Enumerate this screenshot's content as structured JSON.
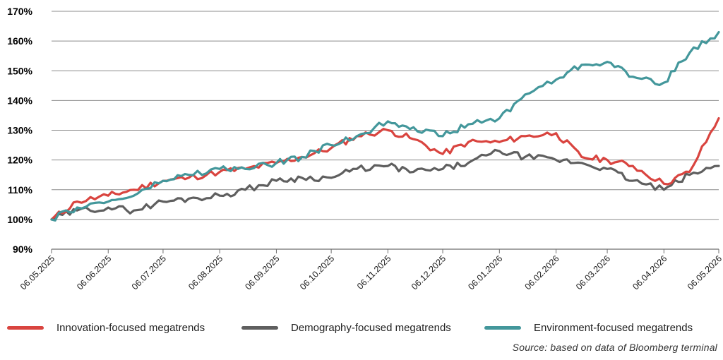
{
  "chart_data": {
    "type": "line",
    "title": "",
    "xlabel": "",
    "ylabel": "",
    "y_tick_labels": [
      "170%",
      "160%",
      "150%",
      "140%",
      "130%",
      "120%",
      "110%",
      "100%",
      "90%"
    ],
    "ylim": [
      90,
      170
    ],
    "y_unit": "%",
    "grid": "horizontal",
    "x_tick_labels": [
      "06.05.2025",
      "06.06.2025",
      "06.07.2025",
      "06.08.2025",
      "06.09.2025",
      "06.10.2025",
      "06.11.2025",
      "06.12.2025",
      "06.01.2026",
      "06.02.2026",
      "06.03.2026",
      "06.04.2026",
      "06.05.2026"
    ],
    "x_dates": [
      "2025-05-06",
      "2025-05-20",
      "2025-06-06",
      "2025-06-20",
      "2025-07-06",
      "2025-07-20",
      "2025-08-06",
      "2025-08-20",
      "2025-09-06",
      "2025-09-20",
      "2025-10-06",
      "2025-10-20",
      "2025-11-06",
      "2025-11-20",
      "2025-12-06",
      "2025-12-20",
      "2026-01-06",
      "2026-01-20",
      "2026-02-06",
      "2026-02-20",
      "2026-03-06",
      "2026-03-20",
      "2026-04-06",
      "2026-04-20",
      "2026-05-06"
    ],
    "legend_position": "bottom",
    "series": [
      {
        "name": "Innovation-focused megatrends",
        "color": "#d9443f",
        "values": [
          100,
          106,
          108,
          110,
          113,
          114,
          116,
          117,
          119,
          121,
          124,
          128,
          130,
          127,
          122,
          126,
          126,
          128,
          129,
          121,
          120,
          118,
          112,
          116,
          134
        ]
      },
      {
        "name": "Demography-focused megatrends",
        "color": "#5f5f5f",
        "values": [
          100,
          103,
          104,
          103,
          106,
          107,
          108,
          110,
          113,
          114,
          114,
          117,
          118,
          116,
          117,
          119,
          123,
          121,
          120,
          119,
          117,
          113,
          110,
          115,
          118
        ]
      },
      {
        "name": "Environment-focused megatrends",
        "color": "#43979b",
        "values": [
          100,
          104,
          106,
          108,
          113,
          115,
          117,
          117,
          119,
          121,
          125,
          128,
          133,
          131,
          128,
          132,
          134,
          142,
          147,
          152,
          153,
          148,
          146,
          156,
          163
        ]
      }
    ]
  },
  "source": "Source: based on data of Bloomberg terminal"
}
